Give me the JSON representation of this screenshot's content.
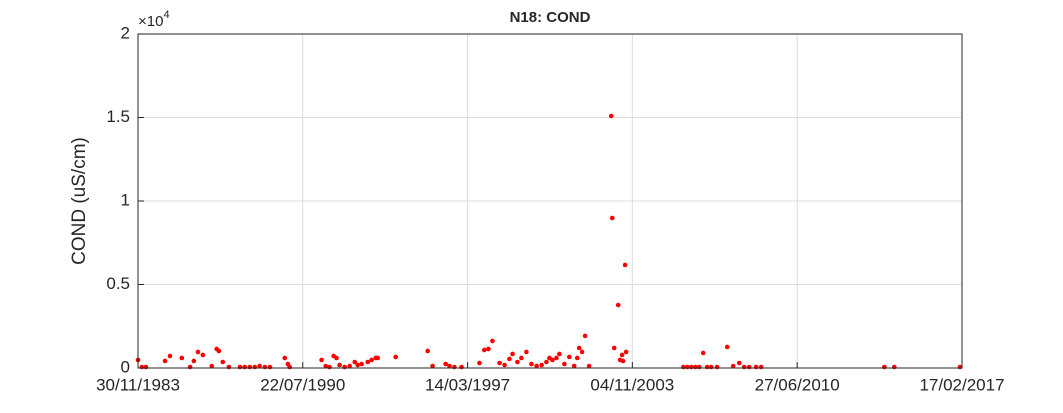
{
  "chart_data": {
    "type": "scatter",
    "title": "N18: COND",
    "y_label": "COND (uS/cm)",
    "y_exponent": {
      "base": "×10",
      "power": "4"
    },
    "color": "#ff0000",
    "grid": true,
    "xlim": [
      "1983-11-30",
      "2017-02-17"
    ],
    "xticks": [
      {
        "value": "1983-11-30",
        "label": "30/11/1983"
      },
      {
        "value": "1990-07-22",
        "label": "22/07/1990"
      },
      {
        "value": "1997-03-14",
        "label": "14/03/1997"
      },
      {
        "value": "2003-11-04",
        "label": "04/11/2003"
      },
      {
        "value": "2010-06-27",
        "label": "27/06/2010"
      },
      {
        "value": "2017-02-17",
        "label": "17/02/2017"
      }
    ],
    "ylim": [
      0,
      20000
    ],
    "yticks": [
      0,
      {
        "value": 5000,
        "label": "0.5"
      },
      {
        "value": 10000,
        "label": "1"
      },
      {
        "value": 15000,
        "label": "1.5"
      },
      {
        "value": 20000,
        "label": "2"
      }
    ],
    "x": [
      "1983-12-01",
      "1984-01-26",
      "1984-03-25",
      "1985-01-01",
      "1985-03-15",
      "1985-09-05",
      "1986-01-05",
      "1986-03-01",
      "1986-05-01",
      "1986-07-12",
      "1986-11-20",
      "1987-02-01",
      "1987-03-05",
      "1987-05-01",
      "1987-07-30",
      "1988-01-10",
      "1988-03-20",
      "1988-06-01",
      "1988-08-15",
      "1988-10-25",
      "1989-01-10",
      "1989-03-25",
      "1989-10-30",
      "1989-12-15",
      "1990-01-10",
      "1991-04-25",
      "1991-06-25",
      "1991-08-20",
      "1991-10-20",
      "1991-12-01",
      "1992-01-15",
      "1992-03-30",
      "1992-06-12",
      "1992-08-25",
      "1992-10-08",
      "1992-12-05",
      "1993-03-05",
      "1993-05-01",
      "1993-07-01",
      "1993-07-30",
      "1994-04-20",
      "1995-08-05",
      "1995-10-15",
      "1996-04-25",
      "1996-06-20",
      "1996-09-01",
      "1996-12-15",
      "1997-09-05",
      "1997-11-15",
      "1998-01-15",
      "1998-03-15",
      "1998-06-28",
      "1998-09-10",
      "1998-11-20",
      "1999-01-05",
      "1999-03-18",
      "1999-05-15",
      "1999-07-28",
      "1999-10-10",
      "1999-12-25",
      "2000-03-08",
      "2000-05-18",
      "2000-07-01",
      "2000-08-15",
      "2000-10-12",
      "2000-11-25",
      "2001-02-07",
      "2001-04-20",
      "2001-07-01",
      "2001-08-15",
      "2001-09-12",
      "2001-10-25",
      "2001-12-08",
      "2002-02-05",
      "2002-12-28",
      "2003-01-12",
      "2003-02-10",
      "2003-04-10",
      "2003-05-08",
      "2003-06-06",
      "2003-06-20",
      "2003-07-20",
      "2003-08-04",
      "2005-11-25",
      "2006-01-22",
      "2006-03-22",
      "2006-05-20",
      "2006-07-16",
      "2006-09-12",
      "2006-11-10",
      "2007-01-08",
      "2007-04-05",
      "2007-09-01",
      "2007-11-28",
      "2008-02-25",
      "2008-05-08",
      "2008-07-20",
      "2008-10-30",
      "2009-01-12",
      "2014-01-01",
      "2014-05-27",
      "2017-01-18"
    ],
    "values": [
      480,
      60,
      60,
      420,
      720,
      600,
      60,
      420,
      960,
      780,
      120,
      1140,
      1020,
      360,
      60,
      60,
      60,
      60,
      60,
      120,
      60,
      60,
      600,
      240,
      60,
      480,
      120,
      60,
      720,
      600,
      180,
      60,
      120,
      360,
      180,
      240,
      360,
      480,
      600,
      600,
      660,
      1020,
      120,
      240,
      120,
      60,
      60,
      300,
      1080,
      1140,
      1620,
      300,
      180,
      540,
      840,
      360,
      600,
      960,
      240,
      120,
      180,
      360,
      600,
      480,
      600,
      840,
      240,
      660,
      120,
      600,
      1200,
      960,
      1920,
      120,
      15090,
      8980,
      1200,
      3770,
      480,
      780,
      420,
      6170,
      960,
      60,
      60,
      60,
      60,
      60,
      900,
      60,
      60,
      60,
      1260,
      120,
      300,
      60,
      60,
      60,
      60,
      60,
      60,
      60
    ]
  }
}
